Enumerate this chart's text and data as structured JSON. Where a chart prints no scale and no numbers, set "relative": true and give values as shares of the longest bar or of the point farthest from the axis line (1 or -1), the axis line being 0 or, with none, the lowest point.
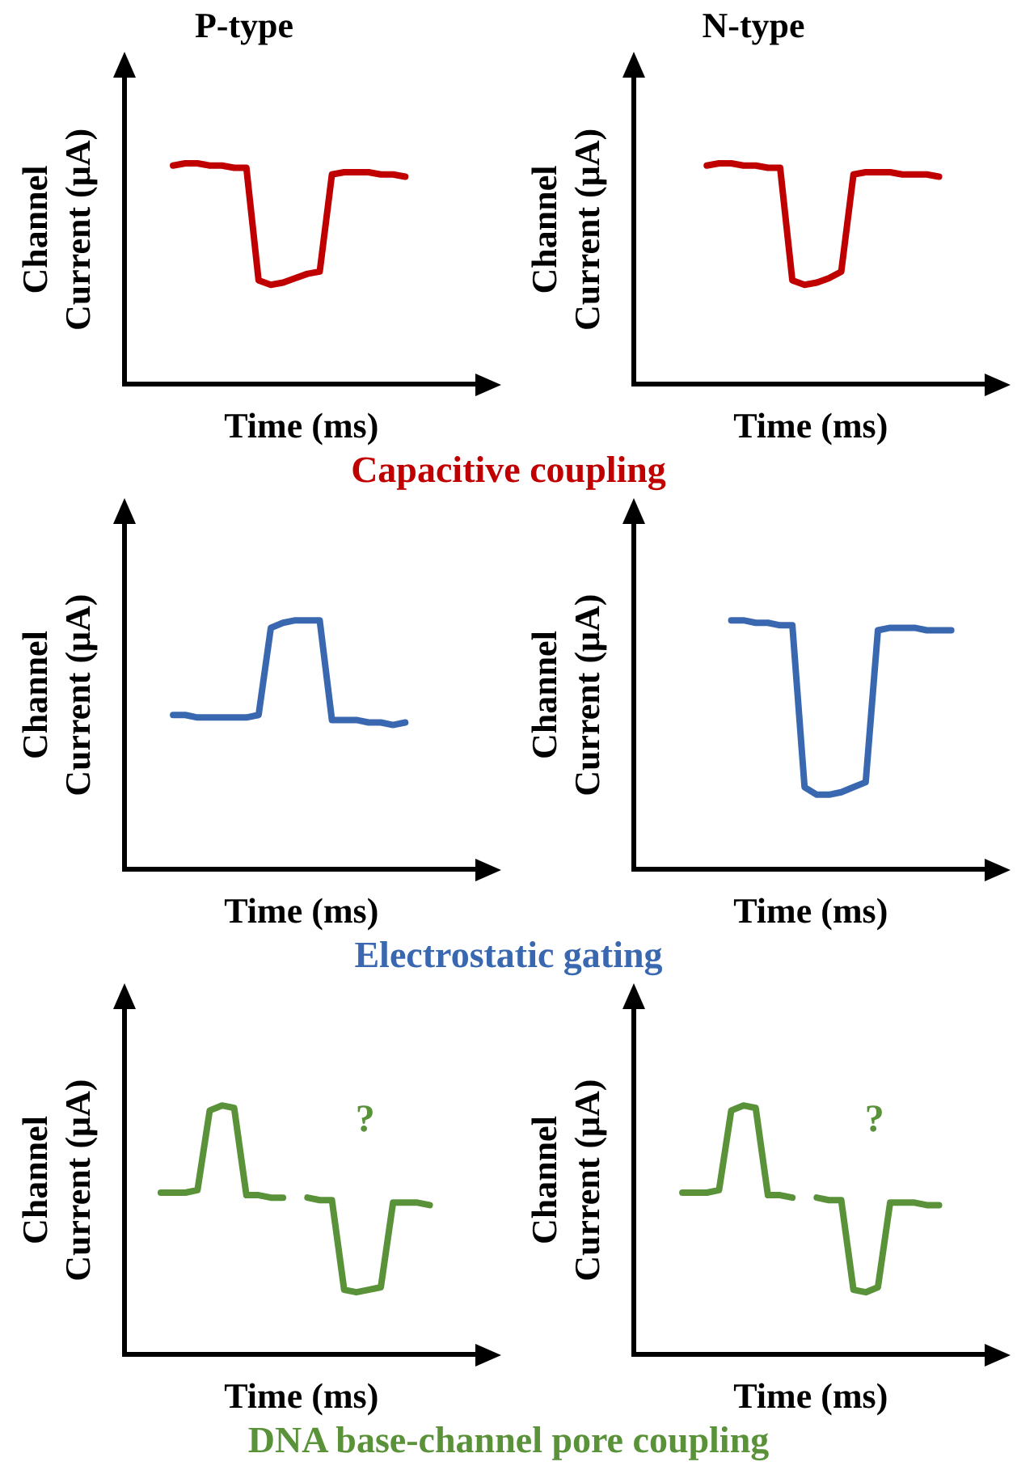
{
  "chart_data": [
    {
      "type": "line",
      "title": "P-type",
      "xlabel": "Time (ms)",
      "ylabel": "Channel Current (μA)",
      "relative": true,
      "color": "#c00000",
      "categories": [
        null,
        null,
        null,
        null,
        null,
        null,
        null,
        null,
        null,
        null,
        null,
        null,
        null,
        null,
        null,
        null,
        null,
        null,
        null,
        null,
        null,
        null,
        null,
        null,
        null,
        null,
        null,
        null,
        null,
        null
      ],
      "values": [
        null,
        null,
        null,
        null,
        0.99,
        1,
        1,
        0.99,
        0.99,
        0.98,
        0.98,
        0.47,
        0.45,
        0.46,
        0.48,
        0.5,
        0.51,
        0.95,
        0.96,
        0.96,
        0.96,
        0.95,
        0.95,
        0.94,
        null,
        null,
        null,
        null,
        null,
        null
      ],
      "annotations": [
        "Capacitive coupling"
      ]
    },
    {
      "type": "line",
      "title": "N-type",
      "xlabel": "Time (ms)",
      "ylabel": "Channel Current (μA)",
      "relative": true,
      "color": "#c00000",
      "categories": [
        null,
        null,
        null,
        null,
        null,
        null,
        null,
        null,
        null,
        null,
        null,
        null,
        null,
        null,
        null,
        null,
        null,
        null,
        null,
        null,
        null,
        null,
        null,
        null,
        null,
        null,
        null,
        null,
        null,
        null
      ],
      "values": [
        null,
        null,
        null,
        null,
        null,
        null,
        0.99,
        1,
        1,
        0.99,
        0.99,
        0.98,
        0.98,
        0.47,
        0.45,
        0.46,
        0.48,
        0.51,
        0.95,
        0.96,
        0.96,
        0.96,
        0.95,
        0.95,
        0.95,
        0.94,
        null,
        null,
        null,
        null
      ]
    },
    {
      "type": "line",
      "xlabel": "Time (ms)",
      "ylabel": "Channel Current (μA)",
      "relative": true,
      "color": "#3a68b0",
      "categories": [
        null,
        null,
        null,
        null,
        null,
        null,
        null,
        null,
        null,
        null,
        null,
        null,
        null,
        null,
        null,
        null,
        null,
        null,
        null,
        null,
        null,
        null,
        null,
        null,
        null,
        null,
        null,
        null,
        null,
        null
      ],
      "values": [
        null,
        null,
        null,
        null,
        0.62,
        0.62,
        0.61,
        0.61,
        0.61,
        0.61,
        0.61,
        0.62,
        0.97,
        0.99,
        1,
        1,
        1,
        0.6,
        0.6,
        0.6,
        0.59,
        0.59,
        0.58,
        0.59,
        null,
        null,
        null,
        null,
        null,
        null
      ],
      "annotations": [
        "Electrostatic gating"
      ]
    },
    {
      "type": "line",
      "xlabel": "Time (ms)",
      "ylabel": "Channel Current (μA)",
      "relative": true,
      "color": "#3a68b0",
      "categories": [
        null,
        null,
        null,
        null,
        null,
        null,
        null,
        null,
        null,
        null,
        null,
        null,
        null,
        null,
        null,
        null,
        null,
        null,
        null,
        null,
        null,
        null,
        null,
        null,
        null,
        null,
        null,
        null,
        null,
        null
      ],
      "values": [
        null,
        null,
        null,
        null,
        null,
        null,
        null,
        null,
        1,
        1,
        0.99,
        0.99,
        0.98,
        0.98,
        0.33,
        0.3,
        0.3,
        0.31,
        0.33,
        0.35,
        0.96,
        0.97,
        0.97,
        0.97,
        0.96,
        0.96,
        0.96,
        null,
        null,
        null
      ]
    },
    {
      "type": "line",
      "xlabel": "Time (ms)",
      "ylabel": "Channel Current (μA)",
      "relative": true,
      "color": "#5a923a",
      "categories": [
        null,
        null,
        null,
        null,
        null,
        null,
        null,
        null,
        null,
        null,
        null,
        null,
        null,
        null,
        null,
        null,
        null,
        null,
        null,
        null,
        null,
        null,
        null,
        null,
        null,
        null,
        null,
        null,
        null,
        null
      ],
      "values": [
        null,
        null,
        null,
        0.65,
        0.65,
        0.65,
        0.66,
        0.98,
        1,
        0.99,
        0.64,
        0.64,
        0.63,
        0.63,
        null,
        0.63,
        0.62,
        0.62,
        0.26,
        0.25,
        0.26,
        0.27,
        0.61,
        0.61,
        0.61,
        0.6,
        null,
        null,
        null,
        null
      ],
      "annotations": [
        "?",
        "DNA base-channel pore coupling"
      ]
    },
    {
      "type": "line",
      "xlabel": "Time (ms)",
      "ylabel": "Channel Current (μA)",
      "relative": true,
      "color": "#5a923a",
      "categories": [
        null,
        null,
        null,
        null,
        null,
        null,
        null,
        null,
        null,
        null,
        null,
        null,
        null,
        null,
        null,
        null,
        null,
        null,
        null,
        null,
        null,
        null,
        null,
        null,
        null,
        null,
        null,
        null,
        null,
        null
      ],
      "values": [
        null,
        null,
        null,
        null,
        0.65,
        0.65,
        0.65,
        0.66,
        0.98,
        1,
        0.99,
        0.64,
        0.64,
        0.63,
        null,
        0.63,
        0.62,
        0.62,
        0.26,
        0.25,
        0.27,
        0.61,
        0.61,
        0.61,
        0.6,
        0.6,
        null,
        null,
        null,
        null
      ],
      "annotations": [
        "?"
      ]
    }
  ]
}
